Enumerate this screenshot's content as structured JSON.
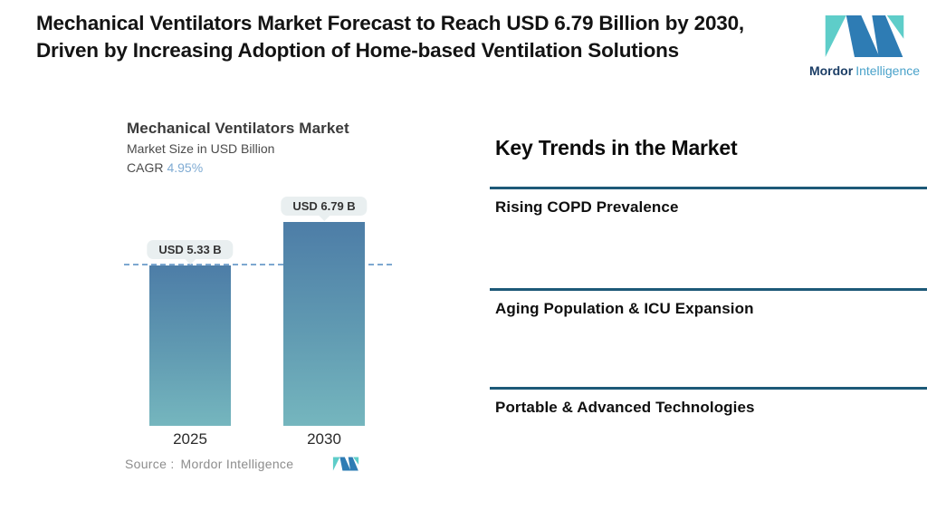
{
  "header": {
    "title": "Mechanical Ventilators Market Forecast to Reach USD 6.79 Billion by 2030, Driven by Increasing Adoption of Home-based Ventilation Solutions",
    "brand": {
      "name_bold": "Mordor",
      "name_light": "Intelligence"
    }
  },
  "chart": {
    "title": "Mechanical Ventilators Market",
    "subtitle": "Market Size in USD Billion",
    "cagr_label": "CAGR",
    "cagr_value": "4.95%",
    "source_label": "Source :",
    "source_value": "Mordor Intelligence"
  },
  "chart_data": {
    "type": "bar",
    "title": "Mechanical Ventilators Market",
    "ylabel": "Market Size in USD Billion",
    "categories": [
      "2025",
      "2030"
    ],
    "values": [
      5.33,
      6.79
    ],
    "data_labels": [
      "USD 5.33 B",
      "USD 6.79 B"
    ],
    "cagr_percent": 4.95,
    "baseline_value": 5.33,
    "ylim": [
      0,
      6.79
    ],
    "grid": false,
    "legend": false,
    "bar_gradient_top": "#4d7da7",
    "bar_gradient_bottom": "#75b6be",
    "baseline_dash_color": "#7da7d0",
    "label_bubble_bg": "#e9eff0"
  },
  "trends": {
    "heading": "Key Trends in the Market",
    "items": [
      {
        "label": "Rising COPD Prevalence"
      },
      {
        "label": "Aging Population & ICU Expansion"
      },
      {
        "label": "Portable & Advanced Technologies"
      }
    ]
  },
  "colors": {
    "separator": "#1d5978",
    "cagr_value": "#7fabd3",
    "brand_blue": "#2e7cb4",
    "brand_teal": "#5ecdc9",
    "brand_name_dark": "#1c3e66",
    "brand_name_light": "#4aa2ca",
    "source_text": "#8d8d8d"
  }
}
